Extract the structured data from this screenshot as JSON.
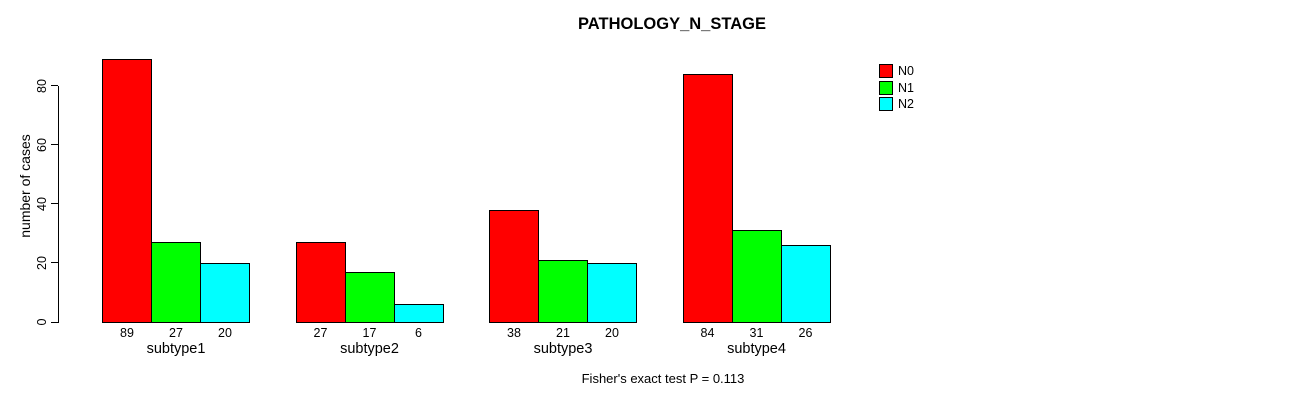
{
  "title": "PATHOLOGY_N_STAGE",
  "chart_data": {
    "type": "bar",
    "title": "PATHOLOGY_N_STAGE",
    "xlabel": "",
    "ylabel": "number of cases",
    "categories": [
      "subtype1",
      "subtype2",
      "subtype3",
      "subtype4"
    ],
    "series": [
      {
        "name": "N0",
        "color": "#ff0000",
        "values": [
          89,
          27,
          38,
          84
        ]
      },
      {
        "name": "N1",
        "color": "#00ff00",
        "values": [
          27,
          17,
          21,
          31
        ]
      },
      {
        "name": "N2",
        "color": "#00ffff",
        "values": [
          20,
          6,
          20,
          26
        ]
      }
    ],
    "yticks": [
      0,
      20,
      40,
      60,
      80
    ],
    "ylim": [
      0,
      89
    ],
    "grid": false,
    "bar_value_labels": true,
    "legend_position": "top-right",
    "annotation": "Fisher's exact test P = 0.113"
  }
}
